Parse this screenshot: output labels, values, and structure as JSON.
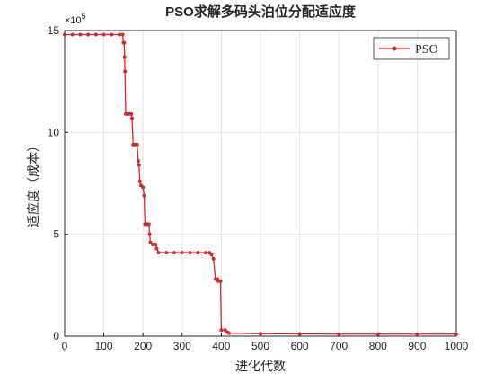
{
  "chart_data": {
    "type": "line",
    "title": "PSO求解多码头泊位分配适应度",
    "x_label": "进化代数",
    "y_label": "适应度（成本）",
    "y_multiplier": {
      "base": "×10",
      "exponent": "5"
    },
    "x": [
      0,
      20,
      40,
      60,
      80,
      100,
      120,
      140,
      148,
      150,
      152,
      153,
      154,
      156,
      160,
      165,
      170,
      172,
      175,
      180,
      185,
      188,
      190,
      192,
      195,
      200,
      203,
      205,
      210,
      215,
      217,
      219,
      225,
      232,
      235,
      240,
      260,
      280,
      300,
      320,
      340,
      360,
      370,
      375,
      380,
      385,
      390,
      392,
      398,
      400,
      410,
      415,
      420,
      500,
      600,
      700,
      800,
      900,
      1000
    ],
    "series": [
      {
        "name": "PSO",
        "color": "#d9262b",
        "values": [
          14.8,
          14.8,
          14.8,
          14.8,
          14.8,
          14.8,
          14.8,
          14.8,
          14.8,
          14.4,
          14.4,
          13.7,
          13.0,
          10.9,
          10.9,
          10.9,
          10.9,
          10.7,
          9.4,
          9.4,
          9.4,
          8.6,
          8.4,
          7.6,
          7.4,
          7.3,
          6.9,
          5.5,
          5.5,
          5.5,
          5.0,
          4.6,
          4.5,
          4.5,
          4.3,
          4.1,
          4.1,
          4.1,
          4.1,
          4.1,
          4.1,
          4.1,
          4.1,
          4.0,
          3.8,
          2.8,
          2.8,
          2.7,
          2.7,
          0.3,
          0.3,
          0.2,
          0.15,
          0.12,
          0.11,
          0.1,
          0.1,
          0.1,
          0.1
        ]
      }
    ],
    "xlim": [
      0,
      1000
    ],
    "xticks": [
      0,
      100,
      200,
      300,
      400,
      500,
      600,
      700,
      800,
      900,
      1000
    ],
    "ylim": [
      0,
      15
    ],
    "yticks": [
      0,
      5,
      10,
      15
    ],
    "grid": true,
    "legend": "northeast"
  }
}
